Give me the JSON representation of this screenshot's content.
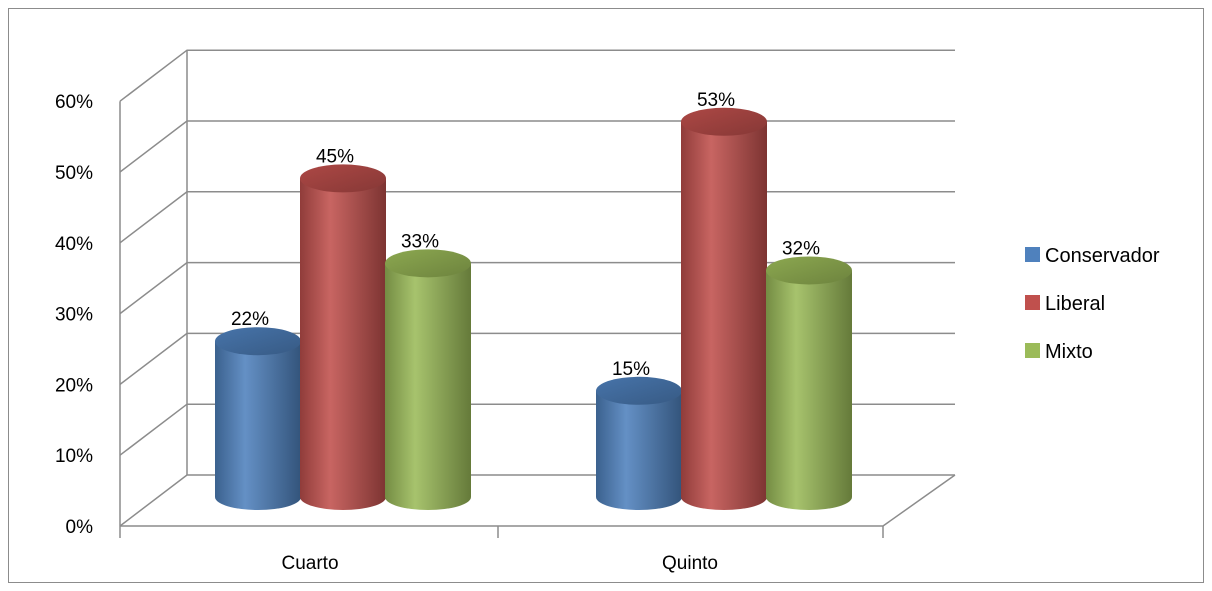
{
  "chart_data": {
    "type": "bar",
    "style": "3d-cylinder",
    "categories": [
      "Cuarto",
      "Quinto"
    ],
    "series": [
      {
        "name": "Conservador",
        "values": [
          22,
          15
        ],
        "labels": [
          "22%",
          "15%"
        ],
        "color": "#4f81bd"
      },
      {
        "name": "Liberal",
        "values": [
          45,
          53
        ],
        "labels": [
          "45%",
          "53%"
        ],
        "color": "#c0504d"
      },
      {
        "name": "Mixto",
        "values": [
          33,
          32
        ],
        "labels": [
          "33%",
          "32%"
        ],
        "color": "#9bbb59"
      }
    ],
    "y_ticks": [
      "0%",
      "10%",
      "20%",
      "30%",
      "40%",
      "50%",
      "60%"
    ],
    "ylim": [
      0,
      60
    ],
    "grid": true,
    "legend_position": "right"
  }
}
